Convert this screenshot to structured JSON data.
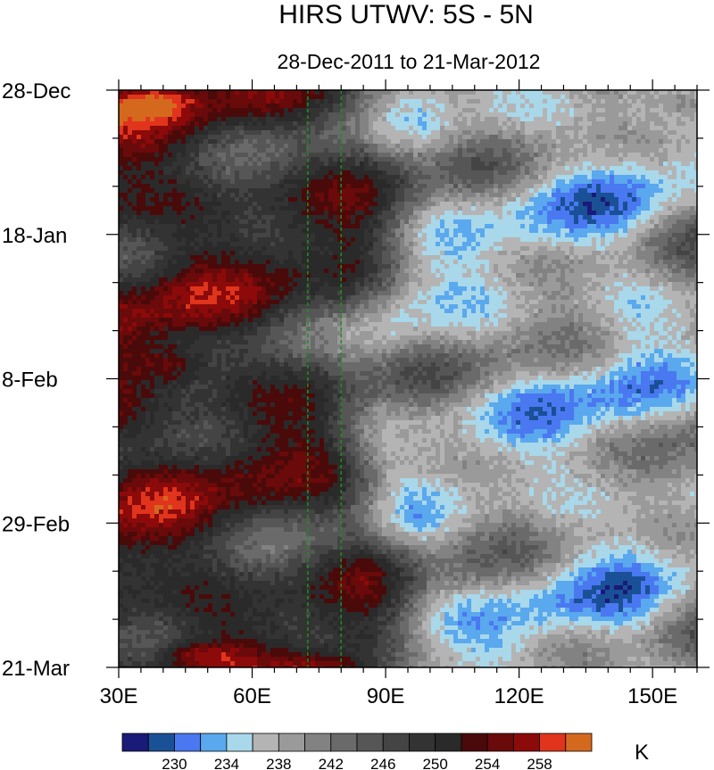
{
  "chart_data": {
    "type": "heatmap",
    "title": "HIRS UTWV: 5S - 5N",
    "subtitle": "28-Dec-2011 to 21-Mar-2012",
    "x_ticks": [
      {
        "value": 30,
        "label": "30E"
      },
      {
        "value": 60,
        "label": "60E"
      },
      {
        "value": 90,
        "label": "90E"
      },
      {
        "value": 120,
        "label": "120E"
      },
      {
        "value": 150,
        "label": "150E"
      }
    ],
    "xlim": [
      30,
      160
    ],
    "y_ticks": [
      {
        "day": 0,
        "label": "28-Dec"
      },
      {
        "day": 21,
        "label": "18-Jan"
      },
      {
        "day": 42,
        "label": "8-Feb"
      },
      {
        "day": 63,
        "label": "29-Feb"
      },
      {
        "day": 84,
        "label": "21-Mar"
      }
    ],
    "ylim_days": [
      0,
      84
    ],
    "reference_lines_lon": [
      72.5,
      80
    ],
    "reference_line_color": "#1f8f1f",
    "colorbar": {
      "unit": "K",
      "levels": [
        228,
        230,
        232,
        234,
        236,
        238,
        240,
        242,
        244,
        246,
        248,
        250,
        252,
        254,
        256,
        258,
        260
      ],
      "labels": [
        {
          "level": 230,
          "text": "230"
        },
        {
          "level": 234,
          "text": "234"
        },
        {
          "level": 238,
          "text": "238"
        },
        {
          "level": 242,
          "text": "242"
        },
        {
          "level": 246,
          "text": "246"
        },
        {
          "level": 250,
          "text": "250"
        },
        {
          "level": 254,
          "text": "254"
        },
        {
          "level": 258,
          "text": "258"
        }
      ],
      "colors": [
        "#1a1a78",
        "#1a5096",
        "#4a78f0",
        "#5aa8ee",
        "#a8d8ea",
        "#b4b4b4",
        "#9a9a9a",
        "#828282",
        "#6a6a6a",
        "#565656",
        "#444444",
        "#333333",
        "#2a2a2a",
        "#4a0a0a",
        "#6a0a0a",
        "#8c0a0a",
        "#e0341c",
        "#d4691e"
      ]
    }
  }
}
